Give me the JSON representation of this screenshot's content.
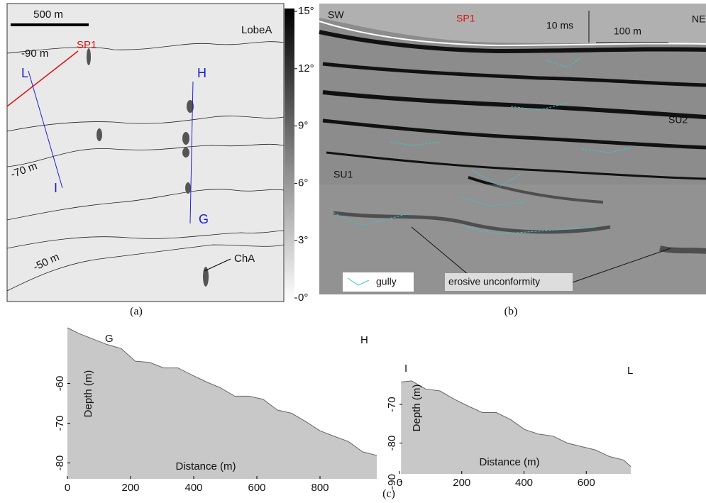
{
  "panel_a": {
    "scale_bar": "500 m",
    "labels": {
      "lobe": "LobeA",
      "c90": "-90 m",
      "sp1": "SP1",
      "l": "L",
      "h": "H",
      "c70": "-70 m",
      "i": "I",
      "g": "G",
      "c50": "-50 m",
      "cha": "ChA"
    },
    "caption": "(a)",
    "colorbar": {
      "range": [
        0,
        15
      ],
      "ticks": [
        {
          "value": 15,
          "label": "15°"
        },
        {
          "value": 12,
          "label": "12°"
        },
        {
          "value": 9,
          "label": "9°"
        },
        {
          "value": 6,
          "label": "6°"
        },
        {
          "value": 3,
          "label": "3°"
        },
        {
          "value": 0,
          "label": "0°"
        }
      ]
    }
  },
  "panel_b": {
    "labels": {
      "sw": "SW",
      "sp1": "SP1",
      "time_scale": "10 ms",
      "distance_scale": "100 m",
      "ne": "NE",
      "su2": "SU2",
      "su1": "SU1",
      "unconformity": "erosive unconformity"
    },
    "legend": "gully",
    "caption": "(b)"
  },
  "chart_data": [
    {
      "type": "area",
      "annotations": [
        "G",
        "H"
      ],
      "xlabel": "Distance (m)",
      "ylabel": "Depth (m)",
      "color": "#c8c8c8",
      "x": [
        0,
        35,
        80,
        125,
        170,
        215,
        260,
        305,
        350,
        395,
        440,
        485,
        530,
        575,
        620,
        665,
        710,
        755,
        800,
        845,
        890,
        935,
        980
      ],
      "values": [
        -46.0,
        -47.4,
        -48.8,
        -50.2,
        -51.2,
        -54.4,
        -54.7,
        -56.1,
        -56.1,
        -57.9,
        -59.6,
        -61.1,
        -63.2,
        -63.2,
        -64.0,
        -66.7,
        -67.5,
        -69.6,
        -71.9,
        -73.3,
        -74.6,
        -77.2,
        -78.1
      ],
      "xlim": [
        0,
        1000
      ],
      "ylim": [
        -84,
        -46
      ],
      "xticks": [
        0,
        200,
        400,
        600,
        800
      ],
      "yticks": [
        -60,
        -70,
        -80
      ]
    },
    {
      "type": "area",
      "annotations": [
        "I",
        "L"
      ],
      "xlabel": "Distance (m)",
      "ylabel": "Depth (m)",
      "color": "#c8c8c8",
      "x": [
        5,
        39,
        84,
        130,
        175,
        220,
        266,
        311,
        357,
        402,
        448,
        493,
        539,
        584,
        630,
        675,
        720,
        743
      ],
      "values": [
        -64.2,
        -63.9,
        -66.0,
        -66.5,
        -68.6,
        -70.4,
        -72.1,
        -72.1,
        -73.9,
        -76.5,
        -77.7,
        -78.2,
        -80.0,
        -80.9,
        -81.8,
        -83.5,
        -84.4,
        -86.1
      ],
      "xlim": [
        0,
        743
      ],
      "ylim": [
        -88,
        -63
      ],
      "xticks": [
        0,
        200,
        400,
        600
      ],
      "yticks": [
        -70,
        -80,
        -90
      ]
    }
  ],
  "caption_c": "(c)"
}
